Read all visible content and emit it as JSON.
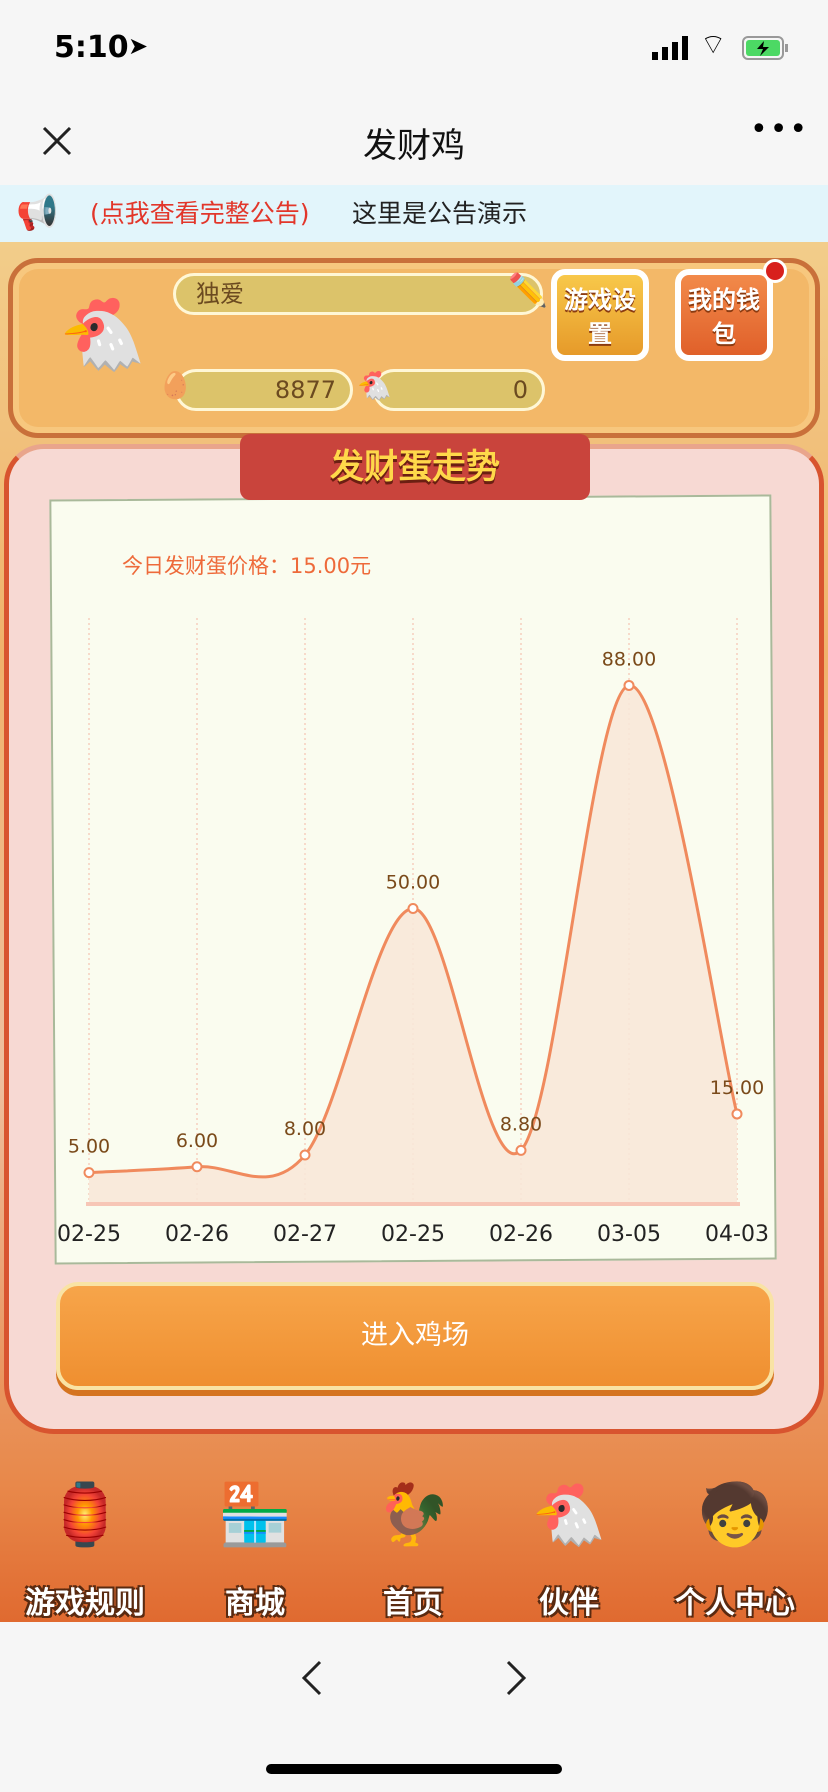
{
  "status_bar": {
    "time": "5:10"
  },
  "nav": {
    "title": "发财鸡",
    "close_icon": "close-icon",
    "more_icon": "more-icon"
  },
  "notice": {
    "link": "(点我查看完整公告)",
    "text": "这里是公告演示"
  },
  "header": {
    "nickname": "独爱",
    "eggs": "8877",
    "chickens": "0",
    "settings_label": "游戏设置",
    "wallet_label": "我的钱包"
  },
  "card": {
    "ribbon": "发财蛋走势",
    "today_price": "今日发财蛋价格：15.00元",
    "enter_button": "进入鸡场"
  },
  "chart_data": {
    "type": "line",
    "categories": [
      "02-25",
      "02-26",
      "02-27",
      "02-25",
      "02-26",
      "03-05",
      "04-03"
    ],
    "values": [
      5.0,
      6.0,
      8.0,
      50.0,
      8.8,
      88.0,
      15.0
    ],
    "data_labels": [
      "5.00",
      "6.00",
      "8.00",
      "50.00",
      "8.80",
      "88.00",
      "15.00"
    ],
    "line_color": "#f08a5d",
    "fill_color": "#f8e8d8",
    "grid": "vertical-dotted"
  },
  "bottom_nav": [
    {
      "label": "游戏规则"
    },
    {
      "label": "商城"
    },
    {
      "label": "首页"
    },
    {
      "label": "伙伴"
    },
    {
      "label": "个人中心"
    }
  ]
}
